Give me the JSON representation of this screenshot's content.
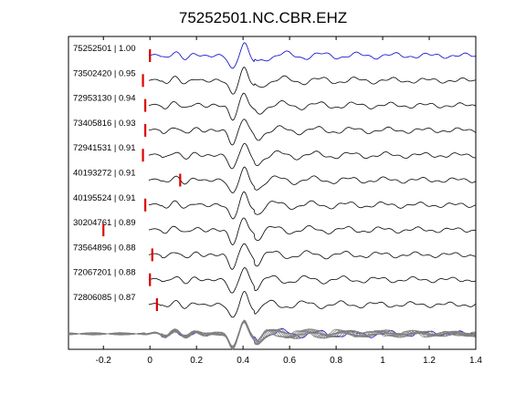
{
  "chart_data": {
    "type": "line",
    "title": "75252501.NC.CBR.EHZ",
    "xlabel": "",
    "ylabel": "",
    "xlim": [
      -0.35,
      1.4
    ],
    "xticks": [
      -0.2,
      0,
      0.2,
      0.4,
      0.6,
      0.8,
      1,
      1.2,
      1.4
    ],
    "xtick_labels": [
      "-0.2",
      "0",
      "0.2",
      "0.4",
      "0.6",
      "0.8",
      "1",
      "1.2",
      "1.4"
    ],
    "grid": false,
    "colors": {
      "reference": "#0000cc",
      "trace": "#000000",
      "stack": "#808080",
      "pick": "#dd0000"
    },
    "traces": [
      {
        "label": "75252501 | 1.00",
        "pick": 0.0,
        "reference": true
      },
      {
        "label": "73502420 | 0.95",
        "pick": -0.03
      },
      {
        "label": "72953130 | 0.94",
        "pick": -0.02
      },
      {
        "label": "73405816 | 0.93",
        "pick": -0.02
      },
      {
        "label": "72941531 | 0.91",
        "pick": -0.03
      },
      {
        "label": "40193272 | 0.91",
        "pick": 0.13
      },
      {
        "label": "40195524 | 0.91",
        "pick": -0.02
      },
      {
        "label": "30204761 | 0.89",
        "pick": -0.2
      },
      {
        "label": "73564896 | 0.88",
        "pick": 0.01
      },
      {
        "label": "72067201 | 0.88",
        "pick": 0.0
      },
      {
        "label": "72806085 | 0.87",
        "pick": 0.03
      }
    ]
  }
}
